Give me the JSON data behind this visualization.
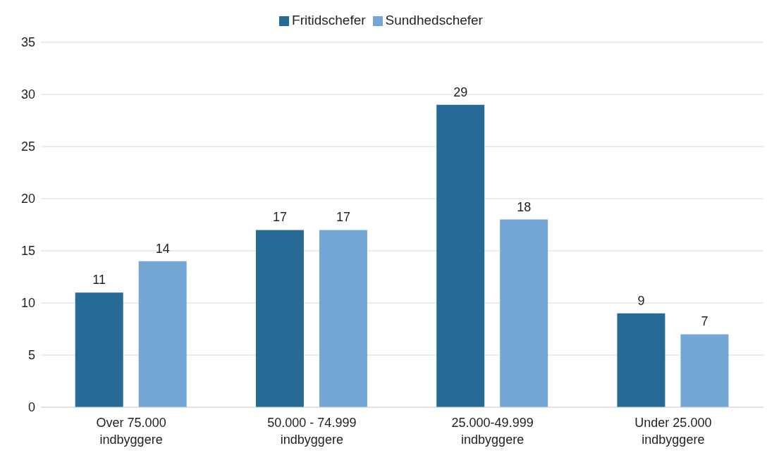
{
  "chart_data": {
    "type": "bar",
    "categories": [
      "Over 75.000\nindbyggere",
      "50.000 - 74.999\nindbyggere",
      "25.000-49.999\nindbyggere",
      "Under 25.000\nindbyggere"
    ],
    "series": [
      {
        "name": "Fritidschefer",
        "color": "#276a96",
        "values": [
          11,
          17,
          29,
          9
        ]
      },
      {
        "name": "Sundhedschefer",
        "color": "#74a7d6",
        "values": [
          14,
          17,
          18,
          7
        ]
      }
    ],
    "ylim": [
      0,
      35
    ],
    "yticks": [
      0,
      5,
      10,
      15,
      20,
      25,
      30,
      35
    ],
    "grid": "y",
    "legend": "top",
    "data_labels": true
  }
}
